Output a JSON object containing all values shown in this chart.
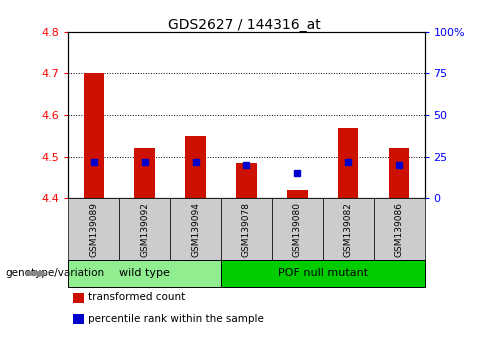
{
  "title": "GDS2627 / 144316_at",
  "samples": [
    "GSM139089",
    "GSM139092",
    "GSM139094",
    "GSM139078",
    "GSM139080",
    "GSM139082",
    "GSM139086"
  ],
  "transformed_counts": [
    4.7,
    4.52,
    4.55,
    4.485,
    4.42,
    4.57,
    4.52
  ],
  "percentile_ranks": [
    22,
    22,
    22,
    20,
    15,
    22,
    20
  ],
  "bar_bottom": 4.4,
  "ylim_left": [
    4.4,
    4.8
  ],
  "ylim_right": [
    0,
    100
  ],
  "yticks_left": [
    4.4,
    4.5,
    4.6,
    4.7,
    4.8
  ],
  "yticks_right": [
    0,
    25,
    50,
    75,
    100
  ],
  "ytick_right_labels": [
    "0",
    "25",
    "50",
    "75",
    "100%"
  ],
  "groups": [
    {
      "name": "wild type",
      "indices": [
        0,
        1,
        2
      ],
      "color": "#90ee90"
    },
    {
      "name": "POF null mutant",
      "indices": [
        3,
        4,
        5,
        6
      ],
      "color": "#00cc00"
    }
  ],
  "bar_color": "#cc1100",
  "percentile_color": "#0000cc",
  "sample_box_color": "#cccccc",
  "legend_items": [
    {
      "label": "transformed count",
      "color": "#cc1100"
    },
    {
      "label": "percentile rank within the sample",
      "color": "#0000cc"
    }
  ],
  "genotype_label": "genotype/variation",
  "grid_lines": [
    4.5,
    4.6,
    4.7
  ]
}
